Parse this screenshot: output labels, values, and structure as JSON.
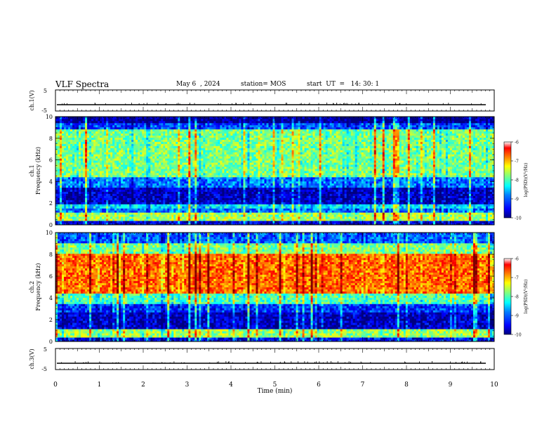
{
  "header": {
    "title": "VLF Spectra",
    "date": "May 6  , 2024",
    "station": "station= MOS",
    "start": "start  UT  =   14: 30: 1"
  },
  "chart_data": [
    {
      "type": "line",
      "panel": "top-trace",
      "ylabel": "ch.1(V)",
      "ylim": [
        -5,
        5
      ],
      "yticks": [
        "5",
        "-5"
      ],
      "baseline": -2,
      "xlim": [
        0,
        10
      ]
    },
    {
      "type": "heatmap",
      "panel": "spectrogram-ch1",
      "ylabel_line1": "ch.1",
      "ylabel_line2": "Frequency  (kHz)",
      "ylim": [
        0,
        10
      ],
      "yticks": [
        "0",
        "2",
        "4",
        "6",
        "8",
        "10"
      ],
      "xlim": [
        0,
        10
      ],
      "colorbar": {
        "label": "log(PSD)(V²/Hz)",
        "ticks": [
          "-6",
          "-7",
          "-8",
          "-9",
          "-10"
        ],
        "range": [
          -10,
          -6
        ]
      },
      "bands": [
        {
          "from": 0,
          "to": 0.4,
          "level": -9.6
        },
        {
          "from": 0.4,
          "to": 1.2,
          "level": -7.8
        },
        {
          "from": 1.2,
          "to": 1.6,
          "level": -9.0
        },
        {
          "from": 1.6,
          "to": 1.9,
          "level": -8.6
        },
        {
          "from": 1.9,
          "to": 3.5,
          "level": -9.7
        },
        {
          "from": 3.5,
          "to": 4.5,
          "level": -9.0
        },
        {
          "from": 4.5,
          "to": 8.8,
          "level": -8.0
        },
        {
          "from": 8.8,
          "to": 9.4,
          "level": -9.2
        },
        {
          "from": 9.4,
          "to": 10,
          "level": -9.9
        }
      ]
    },
    {
      "type": "heatmap",
      "panel": "spectrogram-ch2",
      "ylabel_line1": "ch.2",
      "ylabel_line2": "Frequency  (kHz)",
      "ylim": [
        0,
        10
      ],
      "yticks": [
        "0",
        "2",
        "4",
        "6",
        "8",
        "10"
      ],
      "xlim": [
        0,
        10
      ],
      "colorbar": {
        "label": "log(PSD)(V²/Hz)",
        "ticks": [
          "-6",
          "-7",
          "-8",
          "-9",
          "-10"
        ],
        "range": [
          -10,
          -6
        ]
      },
      "bands": [
        {
          "from": 0,
          "to": 0.4,
          "level": -9.5
        },
        {
          "from": 0.4,
          "to": 1.2,
          "level": -7.9
        },
        {
          "from": 1.2,
          "to": 2.6,
          "level": -9.7
        },
        {
          "from": 2.6,
          "to": 3.5,
          "level": -9.3
        },
        {
          "from": 3.5,
          "to": 4.4,
          "level": -8.2
        },
        {
          "from": 4.4,
          "to": 8.0,
          "level": -6.9
        },
        {
          "from": 8.0,
          "to": 9.0,
          "level": -8.0
        },
        {
          "from": 9.0,
          "to": 10,
          "level": -9.1
        }
      ]
    },
    {
      "type": "line",
      "panel": "bottom-trace",
      "ylabel": "ch.3(V)",
      "ylim": [
        -5,
        5
      ],
      "yticks": [
        "5",
        "-5"
      ],
      "baseline": -2,
      "xlim": [
        0,
        10
      ]
    }
  ],
  "xaxis": {
    "label": "Time  (min)",
    "ticks": [
      "0",
      "1",
      "2",
      "3",
      "4",
      "5",
      "6",
      "7",
      "8",
      "9",
      "10"
    ],
    "xlim": [
      0,
      10
    ]
  },
  "colors": {
    "jet": [
      "#00007f",
      "#0000ff",
      "#007fff",
      "#00ffff",
      "#7fff7f",
      "#ffff00",
      "#ff7f00",
      "#ff0000",
      "#7f0000"
    ]
  }
}
